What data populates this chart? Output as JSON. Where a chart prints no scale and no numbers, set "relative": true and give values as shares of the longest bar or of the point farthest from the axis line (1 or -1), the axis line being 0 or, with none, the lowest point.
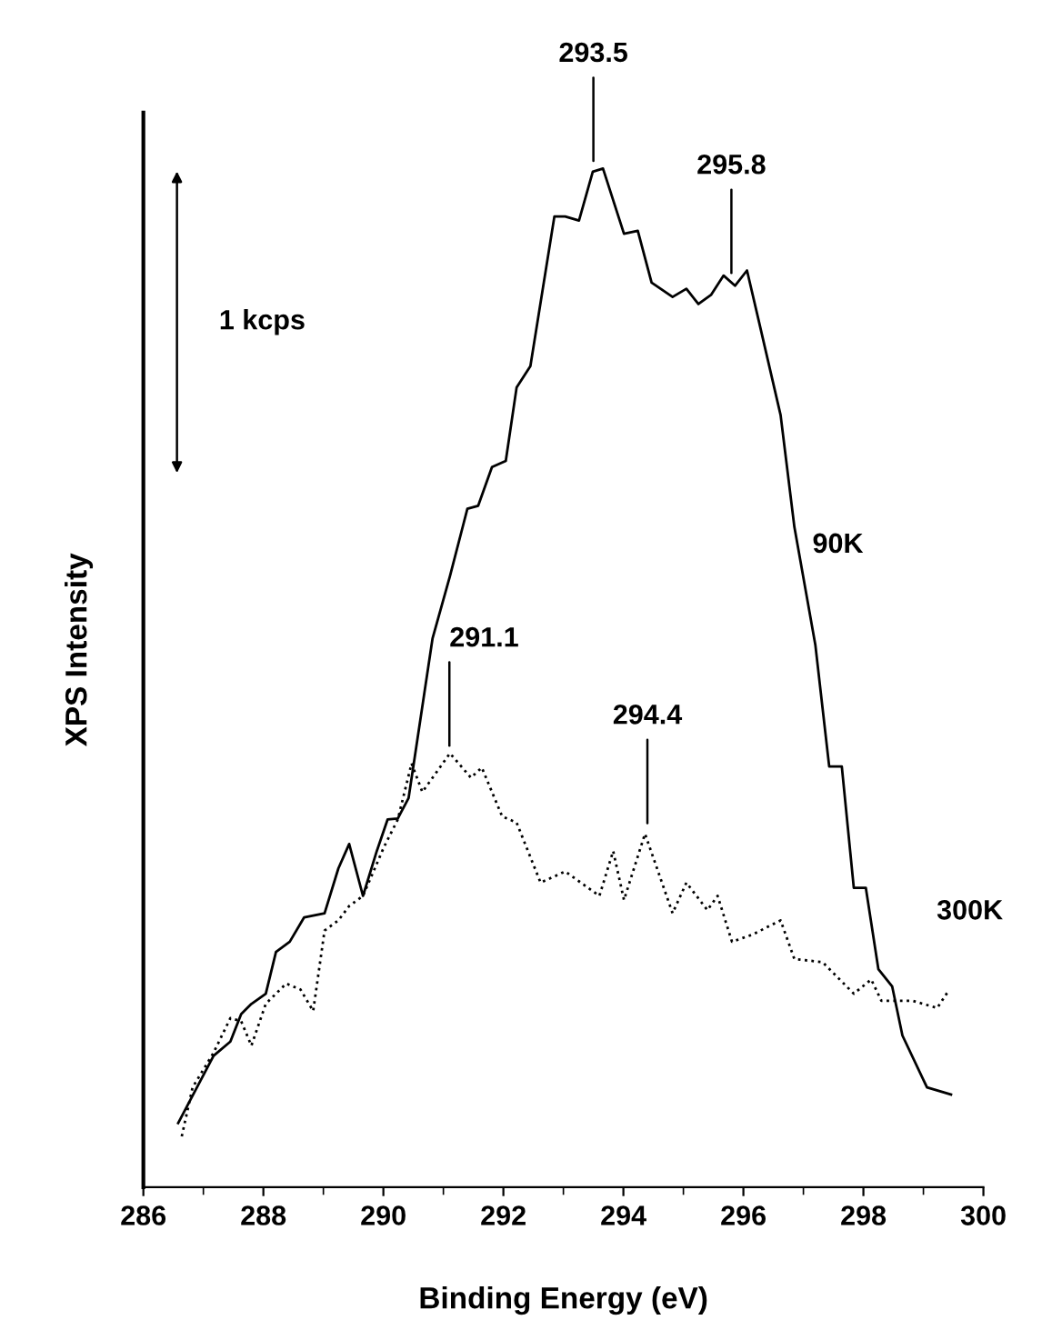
{
  "chart_data": {
    "type": "line",
    "relative": true,
    "xlabel": "Binding Energy (eV)",
    "ylabel": "XPS Intensity",
    "xlim": [
      286,
      300
    ],
    "xticks": [
      286,
      288,
      290,
      292,
      294,
      296,
      298,
      300
    ],
    "grid": false,
    "legend": false,
    "series": [
      {
        "name": "90K",
        "color": "#000000",
        "line_style": "solid",
        "x": [
          286.58,
          287.17,
          287.45,
          287.63,
          287.8,
          288.04,
          288.21,
          288.44,
          288.68,
          289.02,
          289.25,
          289.43,
          289.66,
          289.89,
          290.07,
          290.24,
          290.42,
          290.82,
          291.11,
          291.4,
          291.58,
          291.81,
          292.04,
          292.22,
          292.45,
          292.85,
          293.03,
          293.26,
          293.49,
          293.66,
          294.01,
          294.24,
          294.47,
          294.82,
          295.05,
          295.25,
          295.46,
          295.67,
          295.86,
          296.06,
          296.27,
          296.62,
          296.85,
          297.2,
          297.43,
          297.64,
          297.84,
          298.04,
          298.25,
          298.48,
          298.65,
          299.06,
          299.46
        ],
        "values": [
          0.063,
          0.129,
          0.143,
          0.17,
          0.18,
          0.19,
          0.231,
          0.241,
          0.265,
          0.269,
          0.313,
          0.337,
          0.286,
          0.33,
          0.361,
          0.362,
          0.382,
          0.539,
          0.6,
          0.666,
          0.669,
          0.707,
          0.713,
          0.785,
          0.806,
          0.953,
          0.953,
          0.949,
          0.997,
          1.0,
          0.936,
          0.939,
          0.888,
          0.874,
          0.882,
          0.867,
          0.876,
          0.895,
          0.885,
          0.9,
          0.847,
          0.758,
          0.648,
          0.532,
          0.413,
          0.413,
          0.294,
          0.294,
          0.214,
          0.197,
          0.149,
          0.098,
          0.091
        ]
      },
      {
        "name": "300K",
        "color": "#000000",
        "line_style": "dotted",
        "x": [
          286.64,
          286.82,
          287.17,
          287.45,
          287.63,
          287.8,
          288.04,
          288.38,
          288.62,
          288.83,
          289.02,
          289.25,
          289.43,
          289.66,
          290.01,
          290.24,
          290.47,
          290.65,
          290.82,
          291.11,
          291.46,
          291.64,
          291.98,
          292.22,
          292.62,
          293.03,
          293.6,
          293.83,
          294.01,
          294.36,
          294.82,
          295.05,
          295.4,
          295.57,
          295.81,
          296.15,
          296.62,
          296.85,
          297.32,
          297.84,
          298.13,
          298.3,
          298.82,
          299.23,
          299.42
        ],
        "values": [
          0.05,
          0.098,
          0.132,
          0.166,
          0.163,
          0.139,
          0.18,
          0.2,
          0.194,
          0.173,
          0.252,
          0.262,
          0.276,
          0.286,
          0.334,
          0.361,
          0.416,
          0.388,
          0.402,
          0.426,
          0.402,
          0.412,
          0.364,
          0.358,
          0.299,
          0.31,
          0.286,
          0.33,
          0.282,
          0.347,
          0.269,
          0.299,
          0.272,
          0.286,
          0.241,
          0.248,
          0.262,
          0.224,
          0.221,
          0.19,
          0.204,
          0.183,
          0.183,
          0.176,
          0.193
        ]
      }
    ],
    "annotations": [
      {
        "text": "293.5",
        "x": 293.5,
        "y": 1.0
      },
      {
        "text": "295.8",
        "x": 295.8,
        "y": 0.89
      },
      {
        "text": "291.1",
        "x": 291.1,
        "y": 0.426
      },
      {
        "text": "294.4",
        "x": 294.4,
        "y": 0.35
      },
      "1 kcps"
    ]
  }
}
